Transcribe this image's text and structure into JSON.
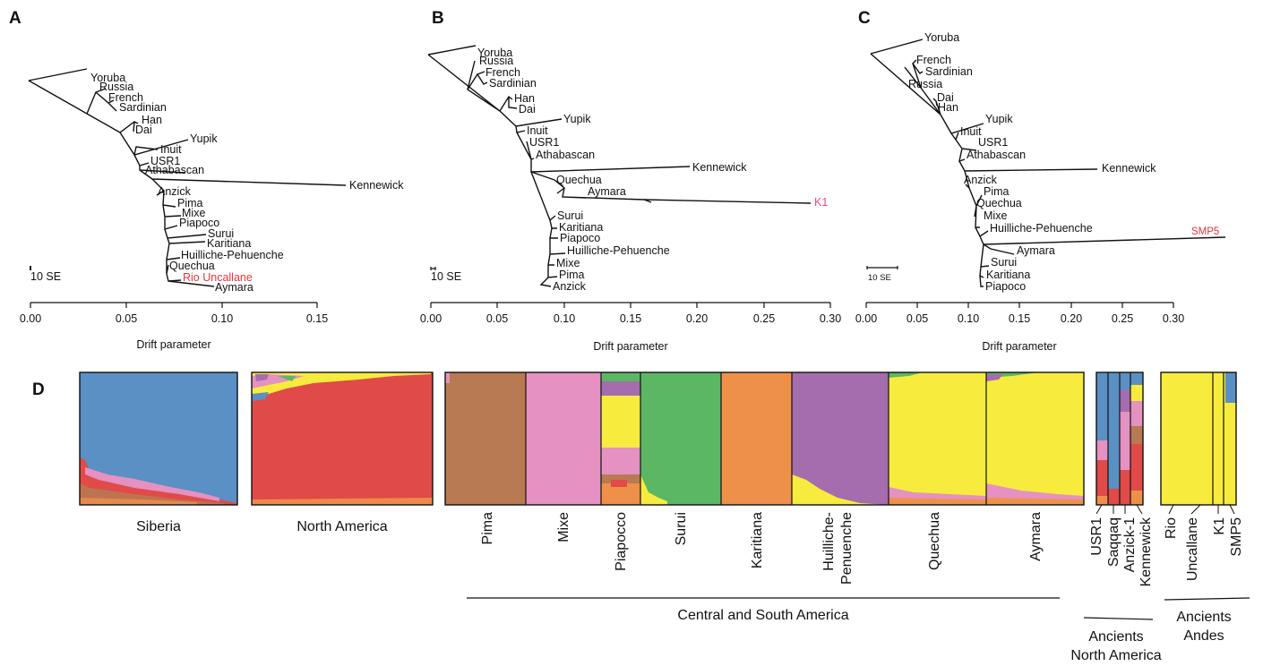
{
  "panels": {
    "A": {
      "letter": "A",
      "axis_label": "Drift parameter",
      "ticks": [
        "0.00",
        "0.05",
        "0.10",
        "0.15"
      ],
      "scale_label": "10 SE",
      "leaves": [
        "Yoruba",
        "Russia",
        "French",
        "Sardinian",
        "Han",
        "Dai",
        "Yupik",
        "Inuit",
        "USR1",
        "Athabascan",
        "Kennewick",
        "Anzick",
        "Pima",
        "Mixe",
        "Piapoco",
        "Surui",
        "Karitiana",
        "Huilliche-Pehuenche",
        "Quechua",
        "Rio Uncallane",
        "Aymara"
      ]
    },
    "B": {
      "letter": "B",
      "axis_label": "Drift parameter",
      "ticks": [
        "0.00",
        "0.05",
        "0.10",
        "0.15",
        "0.20",
        "0.25",
        "0.30"
      ],
      "scale_label": "10 SE",
      "leaves": [
        "Yoruba",
        "Russia",
        "French",
        "Sardinian",
        "Han",
        "Dai",
        "Yupik",
        "Inuit",
        "USR1",
        "Athabascan",
        "Kennewick",
        "Quechua",
        "Aymara",
        "K1",
        "Surui",
        "Karitiana",
        "Piapoco",
        "Huilliche-Pehuenche",
        "Mixe",
        "Pima",
        "Anzick"
      ]
    },
    "C": {
      "letter": "C",
      "axis_label": "Drift parameter",
      "ticks": [
        "0.00",
        "0.05",
        "0.10",
        "0.15",
        "0.20",
        "0.25",
        "0.30"
      ],
      "scale_label": "10 SE",
      "leaves": [
        "Yoruba",
        "French",
        "Sardinian",
        "Russia",
        "Dai",
        "Han",
        "Yupik",
        "Inuit",
        "USR1",
        "Athabascan",
        "Kennewick",
        "Anzick",
        "Pima",
        "Quechua",
        "Mixe",
        "Huilliche-Pehuenche",
        "SMP5",
        "Aymara",
        "Surui",
        "Karitiana",
        "Piapoco"
      ]
    },
    "D": {
      "letter": "D",
      "groups": {
        "siberia": "Siberia",
        "north_america": "North America",
        "csa": "Central and South America",
        "ancients_na_1": "Ancients",
        "ancients_na_2": "North America",
        "ancients_andes_1": "Ancients",
        "ancients_andes_2": "Andes"
      },
      "populations": [
        "Pima",
        "Mixe",
        "Piapocco",
        "Surui",
        "Karitiana",
        "Huilliche-",
        "Penuenche",
        "Quechua",
        "Aymara"
      ],
      "ancients_na": [
        "USR1",
        "Saqqaq",
        "Anzick-1",
        "Kennewick"
      ],
      "ancients_andes": [
        "Rio",
        "Uncallane",
        "K1",
        "SMP5"
      ]
    }
  },
  "colors": {
    "highlight": "#e8323c",
    "k1": "#e84a8a",
    "blue": "#5a90c4",
    "red": "#e04a48",
    "brown": "#b77a52",
    "pink": "#e591c1",
    "green": "#5cb765",
    "orange": "#ef904a",
    "purple": "#a56cae",
    "yellow": "#f7ec3e"
  }
}
